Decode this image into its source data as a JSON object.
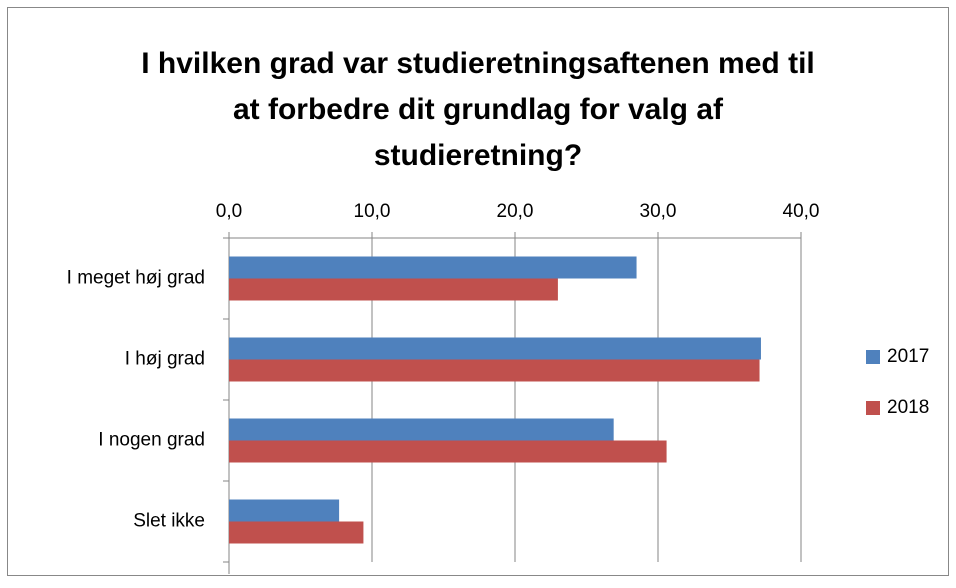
{
  "chart_data": {
    "type": "bar",
    "orientation": "horizontal",
    "title": [
      "I hvilken grad var studieretningsaftenen med til",
      "at forbedre dit grundlag for valg af",
      "studieretning?"
    ],
    "categories": [
      "I meget høj grad",
      "I høj grad",
      "I nogen grad",
      "Slet ikke"
    ],
    "series": [
      {
        "name": "2017",
        "color": "#4f81bd",
        "values": [
          28.5,
          37.2,
          26.9,
          7.7
        ]
      },
      {
        "name": "2018",
        "color": "#c0504d",
        "values": [
          23.0,
          37.1,
          30.6,
          9.4
        ]
      }
    ],
    "xlim": [
      0,
      40
    ],
    "xticks": [
      {
        "value": 0,
        "label": "0,0"
      },
      {
        "value": 10,
        "label": "10,0"
      },
      {
        "value": 20,
        "label": "20,0"
      },
      {
        "value": 30,
        "label": "30,0"
      },
      {
        "value": 40,
        "label": "40,0"
      }
    ],
    "grid": true,
    "legend": "right"
  }
}
